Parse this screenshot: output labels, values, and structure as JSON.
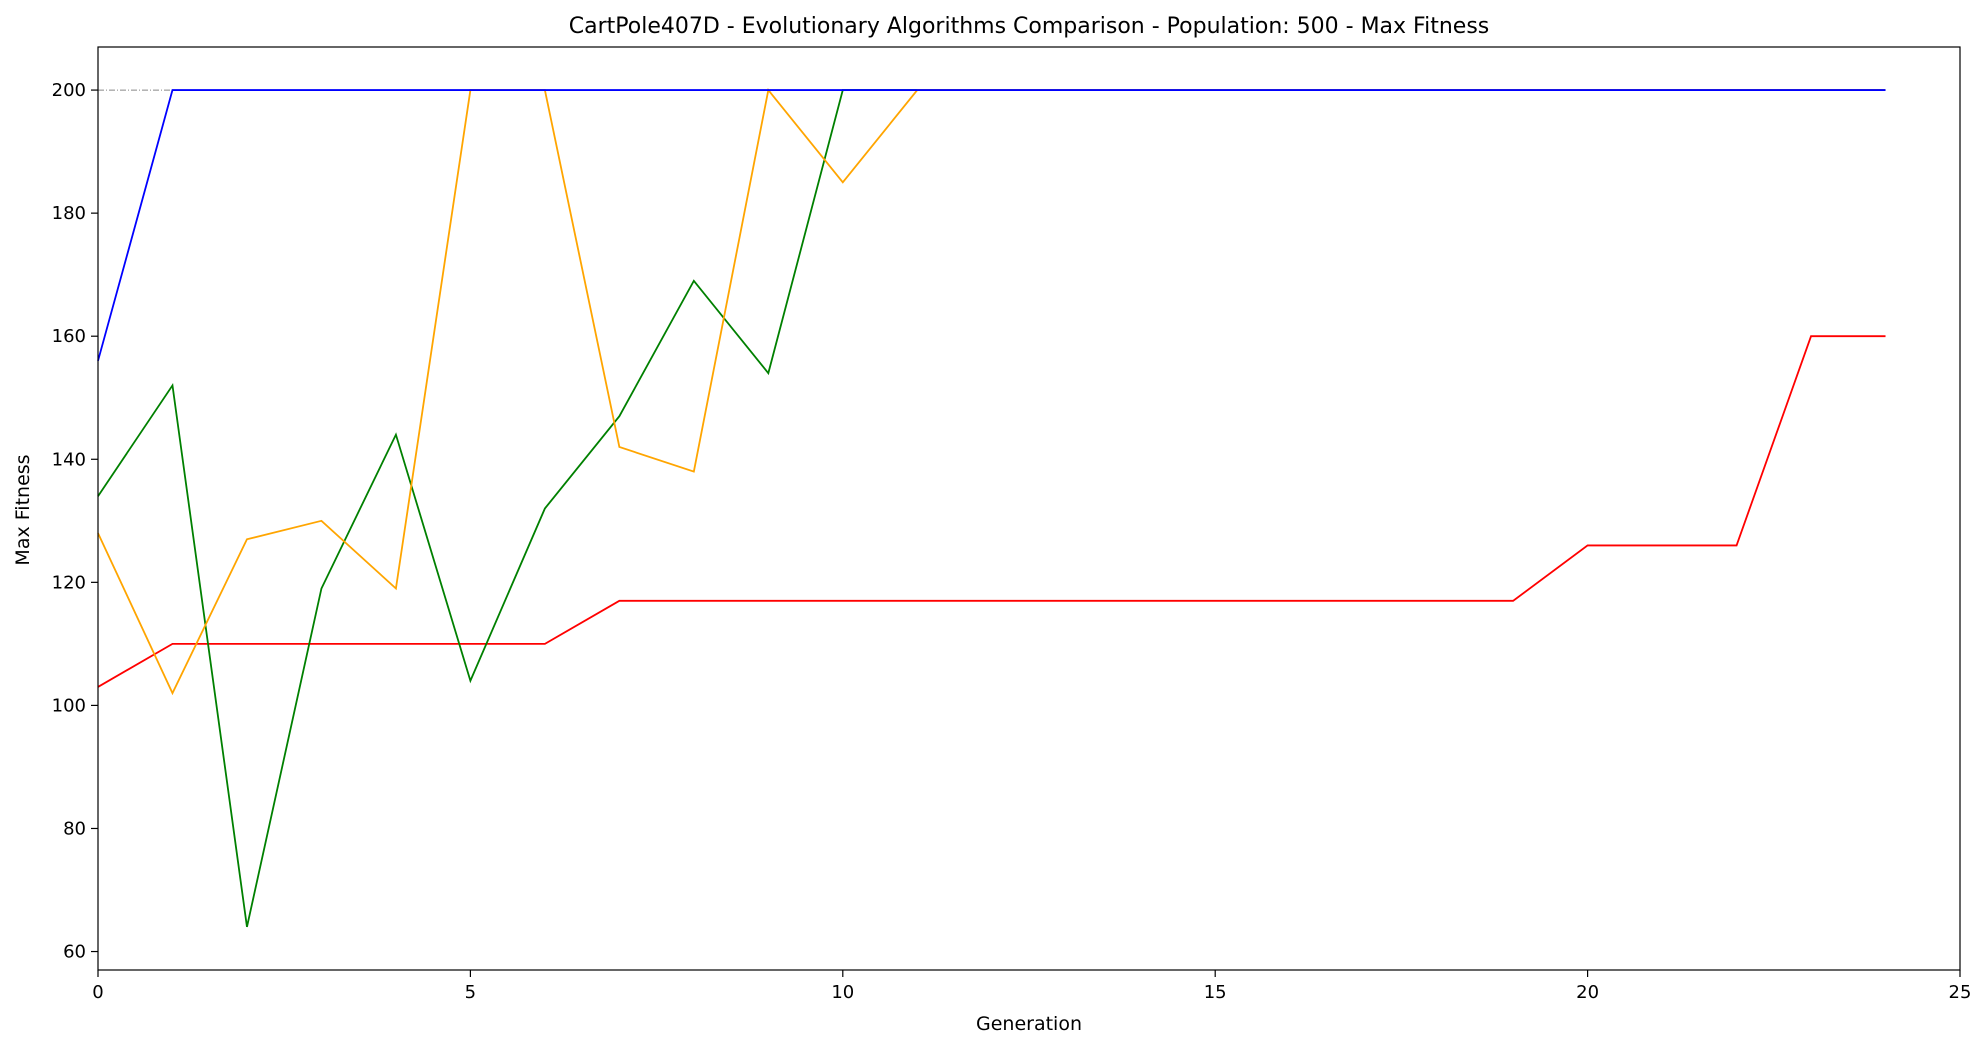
{
  "chart_data": {
    "type": "line",
    "title": "CartPole407D - Evolutionary Algorithms Comparison - Population: 500 - Max Fitness",
    "xlabel": "Generation",
    "ylabel": "Max Fitness",
    "xlim": [
      0,
      25
    ],
    "ylim": [
      57,
      207
    ],
    "xticks": [
      0,
      5,
      10,
      15,
      20,
      25
    ],
    "yticks": [
      60,
      80,
      100,
      120,
      140,
      160,
      180,
      200
    ],
    "grid": false,
    "legend": "none",
    "reference_line": {
      "y": 200,
      "x_from": 0,
      "x_to": 1,
      "color": "#888888"
    },
    "series": [
      {
        "color": "#0000ff",
        "x": [
          0,
          1,
          2,
          3,
          4,
          5,
          6,
          7,
          8,
          9,
          10,
          11,
          12,
          13,
          14,
          15,
          16,
          17,
          18,
          19,
          20,
          21,
          22,
          23,
          24
        ],
        "y": [
          156,
          200,
          200,
          200,
          200,
          200,
          200,
          200,
          200,
          200,
          200,
          200,
          200,
          200,
          200,
          200,
          200,
          200,
          200,
          200,
          200,
          200,
          200,
          200,
          200
        ]
      },
      {
        "color": "#ffa500",
        "x": [
          0,
          1,
          2,
          3,
          4,
          5,
          6,
          7,
          8,
          9,
          10,
          11,
          12,
          13,
          14,
          15,
          16,
          17,
          18,
          19,
          20,
          21,
          22,
          23,
          24
        ],
        "y": [
          128,
          102,
          127,
          130,
          119,
          200,
          200,
          142,
          138,
          200,
          185,
          200,
          200,
          200,
          200,
          200,
          200,
          200,
          200,
          200,
          200,
          200,
          200,
          200,
          200
        ]
      },
      {
        "color": "#008000",
        "x": [
          0,
          1,
          2,
          3,
          4,
          5,
          6,
          7,
          8,
          9,
          10,
          11,
          12,
          13,
          14,
          15,
          16,
          17,
          18,
          19,
          20,
          21,
          22,
          23,
          24
        ],
        "y": [
          134,
          152,
          64,
          119,
          144,
          104,
          132,
          147,
          169,
          154,
          200,
          200,
          200,
          200,
          200,
          200,
          200,
          200,
          200,
          200,
          200,
          200,
          200,
          200,
          200
        ]
      },
      {
        "color": "#ff0000",
        "x": [
          0,
          1,
          2,
          3,
          4,
          5,
          6,
          7,
          8,
          9,
          10,
          11,
          12,
          13,
          14,
          15,
          16,
          17,
          18,
          19,
          20,
          21,
          22,
          23,
          24
        ],
        "y": [
          103,
          110,
          110,
          110,
          110,
          110,
          110,
          117,
          117,
          117,
          117,
          117,
          117,
          117,
          117,
          117,
          117,
          117,
          117,
          117,
          126,
          126,
          126,
          160,
          160
        ]
      }
    ]
  }
}
